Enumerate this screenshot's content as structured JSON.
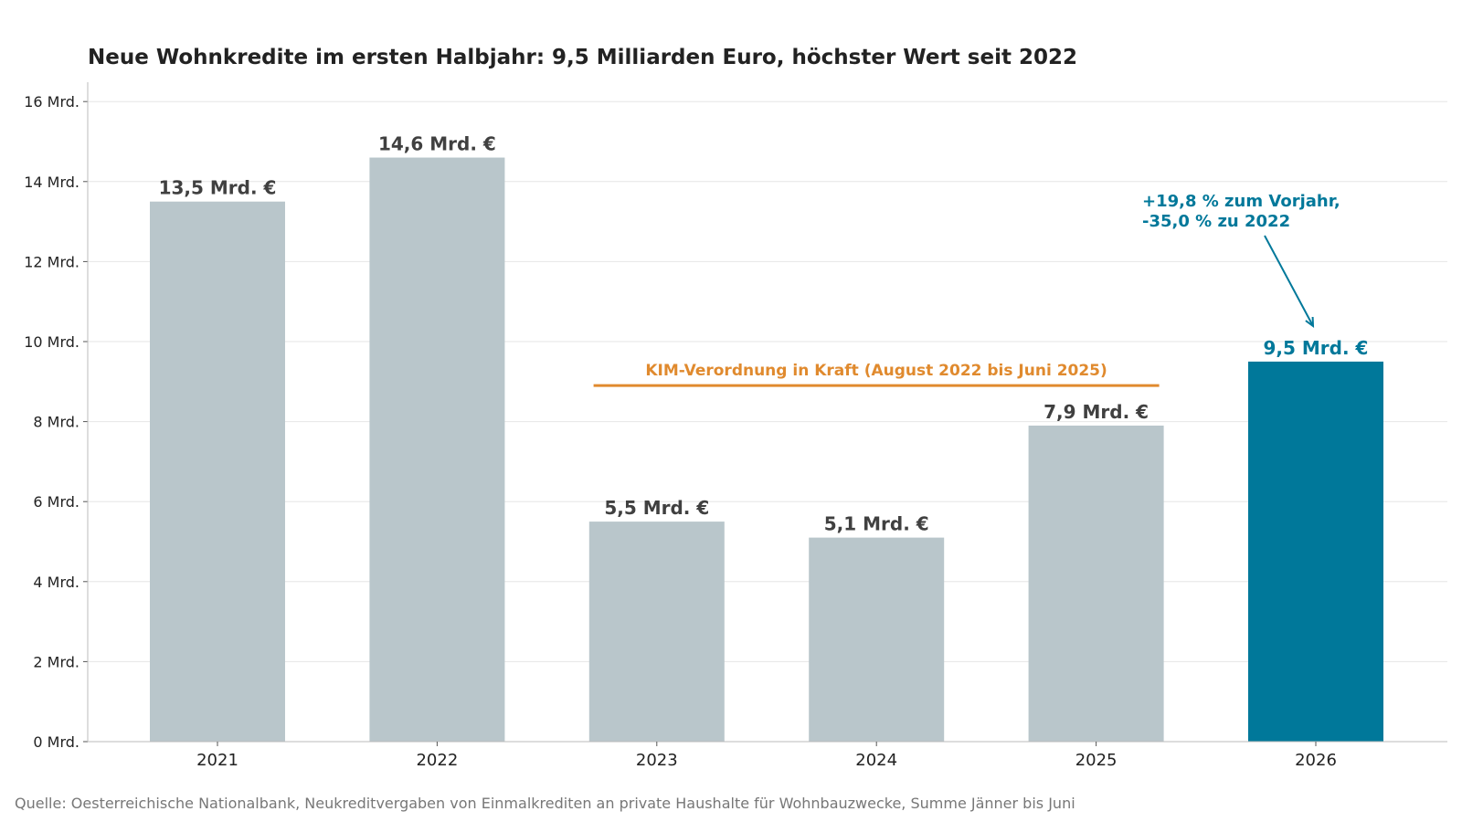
{
  "chart_data": {
    "type": "bar",
    "title": "Neue Wohnkredite im ersten Halbjahr: 9,5 Milliarden Euro, höchster Wert seit 2022",
    "categories": [
      "2021",
      "2022",
      "2023",
      "2024",
      "2025",
      "2026"
    ],
    "values": [
      13.5,
      14.6,
      5.5,
      5.1,
      7.9,
      9.5
    ],
    "value_labels": [
      "13,5 Mrd. €",
      "14,6 Mrd. €",
      "5,5 Mrd. €",
      "5,1 Mrd. €",
      "7,9 Mrd. €",
      "9,5 Mrd. €"
    ],
    "highlight_index": 5,
    "ylim": [
      0,
      16.5
    ],
    "yticks": [
      0,
      2,
      4,
      6,
      8,
      10,
      12,
      14,
      16
    ],
    "ytick_labels": [
      "0 Mrd.",
      "2 Mrd.",
      "4 Mrd.",
      "6 Mrd.",
      "8 Mrd.",
      "10 Mrd.",
      "12 Mrd.",
      "14 Mrd.",
      "16 Mrd."
    ],
    "xlabel": "",
    "ylabel": "",
    "grid": true,
    "colors": {
      "bar_default": "#b9c6cb",
      "bar_highlight": "#00789a",
      "label_default": "#404040",
      "label_highlight": "#00789a",
      "period": "#e08a2e",
      "grid": "#e6e6e6",
      "axis": "#bbbbbb"
    },
    "period_annotation": {
      "text": "KIM-Verordnung in Kraft (August 2022 bis Juni 2025)",
      "start_category": "2022",
      "end_category": "2025",
      "y": 8.9
    },
    "change_annotation": {
      "lines": [
        "+19,8 % zum Vorjahr,",
        "-35,0 % zu 2022"
      ],
      "target_category": "2026"
    },
    "source": "Quelle: Oesterreichische Nationalbank, Neukreditvergaben von Einmalkrediten an private Haushalte für Wohnbauzwecke, Summe Jänner bis Juni"
  }
}
